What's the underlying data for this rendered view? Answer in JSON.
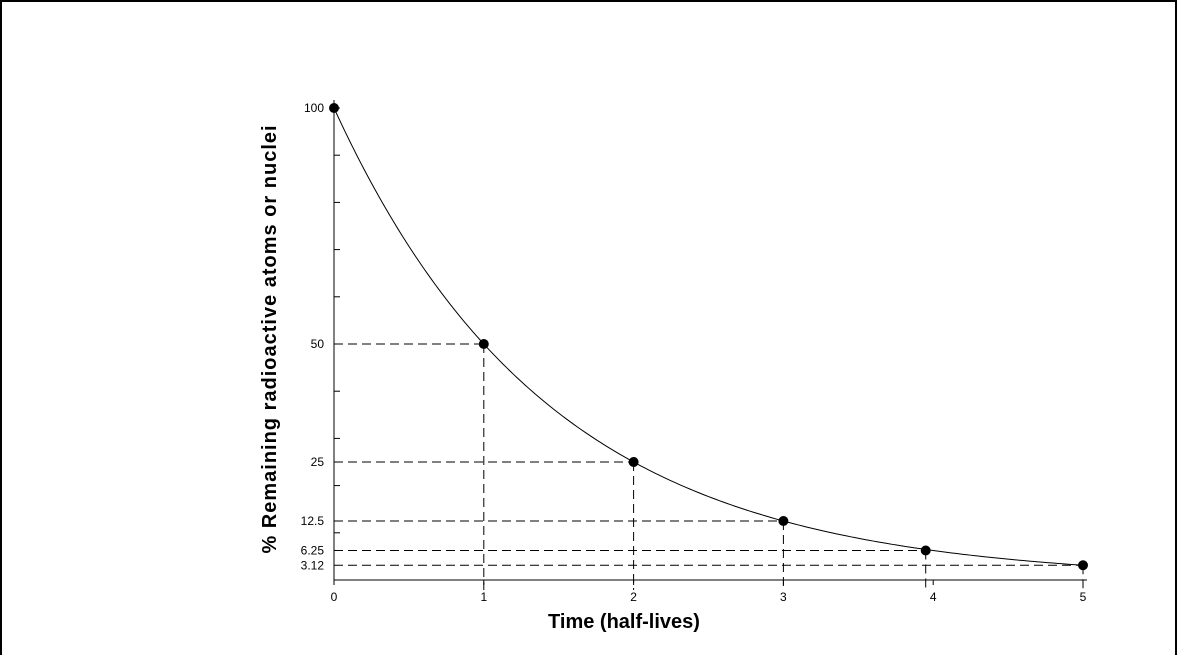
{
  "chart_data": {
    "type": "line",
    "xlabel": "Time (half-lives)",
    "ylabel": "% Remaining radioactive atoms or nuclei",
    "xlim": [
      0,
      5
    ],
    "ylim": [
      0,
      100
    ],
    "x_ticks": [
      0,
      1,
      2,
      3,
      4,
      5
    ],
    "y_tick_labels": [
      {
        "value": 100,
        "label": "100"
      },
      {
        "value": 50,
        "label": "50"
      },
      {
        "value": 25,
        "label": "25"
      },
      {
        "value": 12.5,
        "label": "12.5"
      },
      {
        "value": 6.25,
        "label": "6.25"
      },
      {
        "value": 3.12,
        "label": "3.12"
      }
    ],
    "series": [
      {
        "x": [
          0,
          1,
          2,
          3,
          3.95,
          5
        ],
        "y": [
          100,
          50,
          25,
          12.5,
          6.25,
          3.12
        ]
      }
    ],
    "reference_lines": [
      {
        "x": 1,
        "y": 50
      },
      {
        "x": 2,
        "y": 25
      },
      {
        "x": 3,
        "y": 12.5
      },
      {
        "x": 3.95,
        "y": 6.25
      },
      {
        "x": 5,
        "y": 3.12
      }
    ],
    "grid": false,
    "legend": "none"
  }
}
